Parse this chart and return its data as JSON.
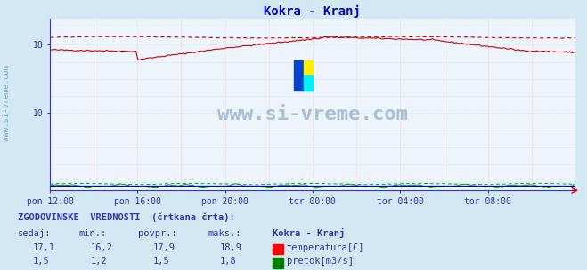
{
  "title": "Kokra - Kranj",
  "title_color": "#0000cc",
  "bg_color": "#d4e8f4",
  "plot_bg_color": "#eef4fb",
  "grid_color_h": "#ffaaaa",
  "grid_color_v": "#bbccff",
  "xlim": [
    0,
    288
  ],
  "ylim": [
    1,
    21
  ],
  "yticks": [
    10,
    18
  ],
  "x_tick_positions": [
    0,
    48,
    96,
    144,
    192,
    240
  ],
  "x_tick_labels": [
    "pon 12:00",
    "pon 16:00",
    "pon 20:00",
    "tor 00:00",
    "tor 04:00",
    "tor 08:00"
  ],
  "temp_color": "#cc0000",
  "flow_color": "#00aa00",
  "blue_line_color": "#0000cc",
  "temp_current": 17.1,
  "temp_min": 16.2,
  "temp_avg": 17.9,
  "temp_max": 18.9,
  "flow_current": 1.5,
  "flow_min": 1.2,
  "flow_avg": 1.5,
  "flow_max": 1.8,
  "station": "Kokra - Kranj",
  "table_header": "ZGODOVINSKE  VREDNOSTI  (črtkana črta):",
  "col_sedaj": "sedaj:",
  "col_min": "min.:",
  "col_povpr": "povpr.:",
  "col_maks": "maks.:",
  "label_temp": "temperatura[C]",
  "label_flow": "pretok[m3/s]",
  "watermark": "www.si-vreme.com",
  "watermark_color": "#9ab8cc",
  "left_label": "www.si-vreme.com",
  "left_label_color": "#7aaabb",
  "text_color": "#3333aa"
}
